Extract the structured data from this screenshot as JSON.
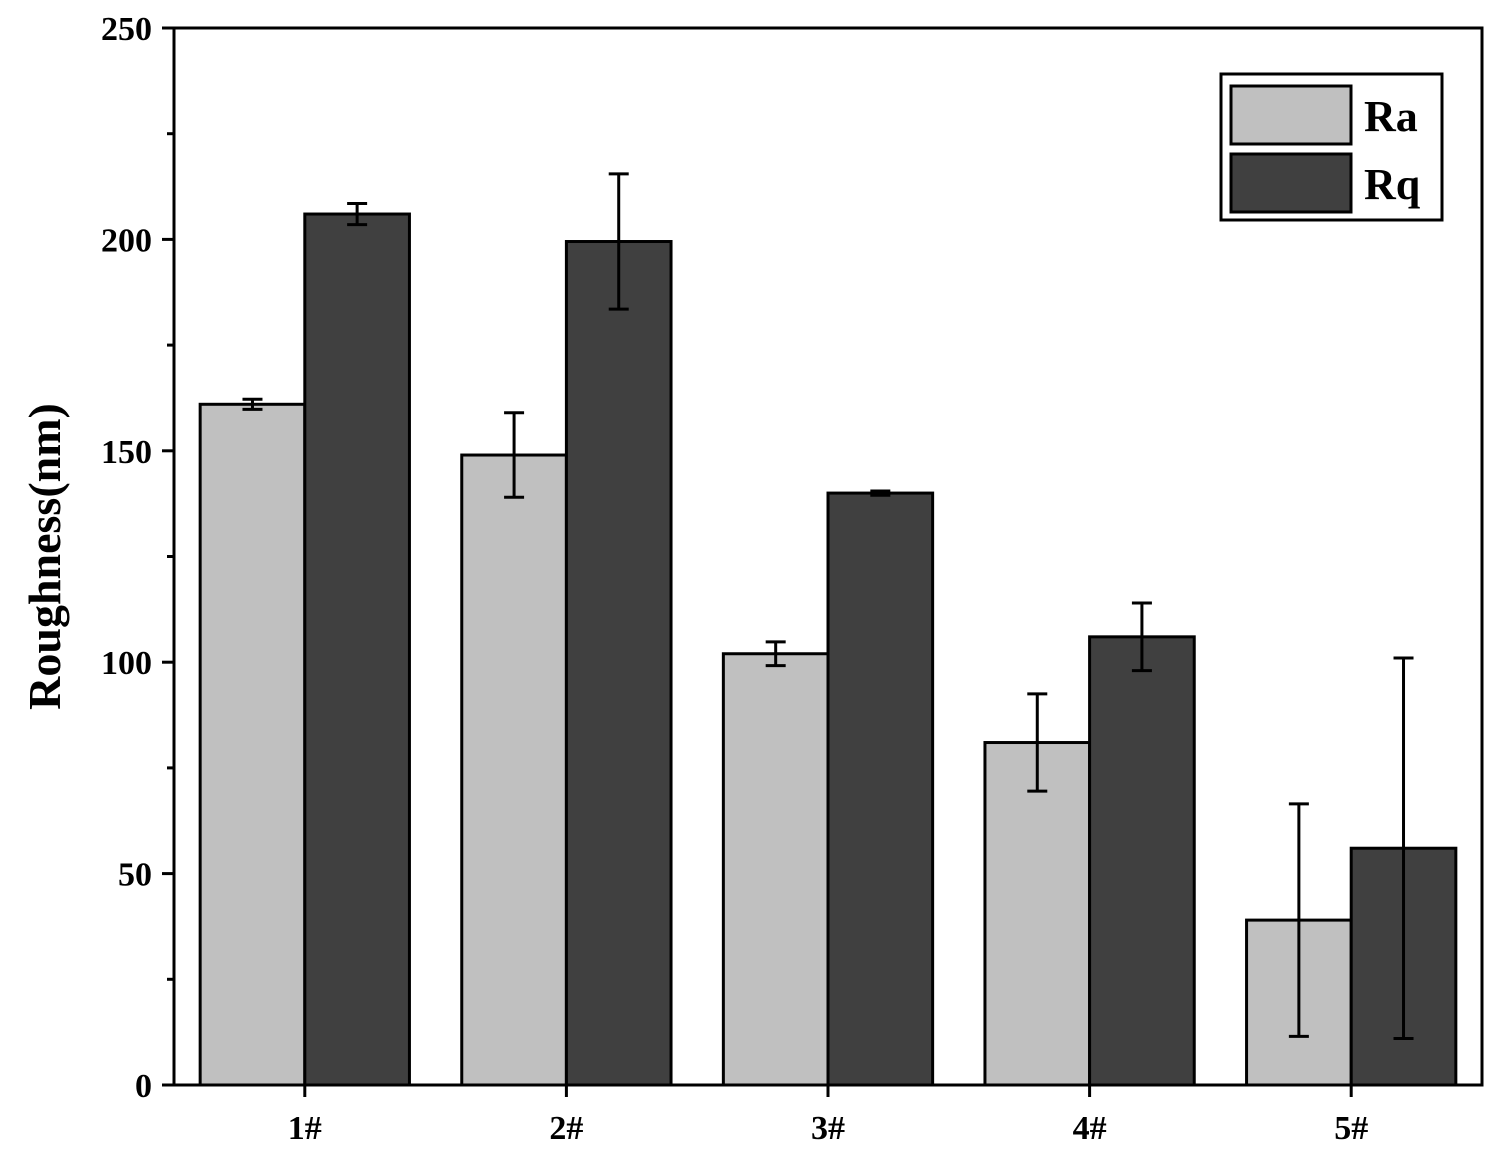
{
  "chart_data": {
    "type": "bar",
    "title": "",
    "xlabel": "",
    "ylabel": "Roughness(nm)",
    "ylim": [
      0,
      250
    ],
    "yticks": [
      0,
      50,
      100,
      150,
      200,
      250
    ],
    "grid": false,
    "legend_position": "top-right",
    "categories": [
      "1#",
      "2#",
      "3#",
      "4#",
      "5#"
    ],
    "series": [
      {
        "name": "Ra",
        "color": "#c0c0c0",
        "values": [
          161,
          149,
          102,
          81,
          39
        ],
        "errors": [
          1.2,
          10,
          2.8,
          11.5,
          27.5
        ]
      },
      {
        "name": "Rq",
        "color": "#404040",
        "values": [
          206,
          199.5,
          140,
          106,
          56
        ],
        "errors": [
          2.5,
          16,
          0.5,
          8,
          45
        ]
      }
    ]
  }
}
